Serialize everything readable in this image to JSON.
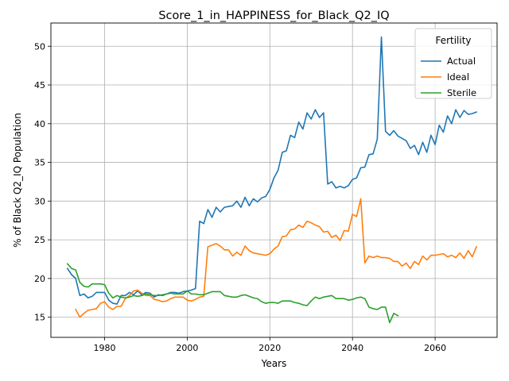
{
  "chart_data": {
    "type": "line",
    "title": "Score_1_in_HAPPINESS_for_Black_Q2_IQ",
    "xlabel": "Years",
    "ylabel": "% of Black Q2_IQ Population",
    "xlim": [
      1967,
      2075
    ],
    "ylim": [
      12.4,
      53.0
    ],
    "xticks": [
      1980,
      2000,
      2020,
      2040,
      2060
    ],
    "yticks": [
      15,
      20,
      25,
      30,
      35,
      40,
      45,
      50
    ],
    "grid": true,
    "legend": {
      "title": "Fertility",
      "position": "top-right"
    },
    "series": [
      {
        "name": "Actual",
        "color": "#1f77b4",
        "x": [
          1971,
          1972,
          1973,
          1974,
          1975,
          1976,
          1977,
          1978,
          1979,
          1980,
          1981,
          1982,
          1983,
          1984,
          1985,
          1986,
          1987,
          1988,
          1989,
          1990,
          1991,
          1992,
          1993,
          1994,
          1995,
          1996,
          1997,
          1998,
          1999,
          2000,
          2001,
          2002,
          2003,
          2004,
          2005,
          2006,
          2007,
          2008,
          2009,
          2010,
          2011,
          2012,
          2013,
          2014,
          2015,
          2016,
          2017,
          2018,
          2019,
          2020,
          2021,
          2022,
          2023,
          2024,
          2025,
          2026,
          2027,
          2028,
          2029,
          2030,
          2031,
          2032,
          2033,
          2034,
          2035,
          2036,
          2037,
          2038,
          2039,
          2040,
          2041,
          2042,
          2043,
          2044,
          2045,
          2046,
          2047,
          2048,
          2049,
          2050,
          2051,
          2052,
          2053,
          2054,
          2055,
          2056,
          2057,
          2058,
          2059,
          2060,
          2061,
          2062,
          2063,
          2064,
          2065,
          2066,
          2067,
          2068,
          2069,
          2070
        ],
        "values": [
          21.3,
          20.5,
          20.0,
          17.8,
          18.0,
          17.5,
          17.7,
          18.2,
          18.2,
          18.2,
          17.2,
          16.8,
          16.7,
          17.8,
          17.8,
          18.2,
          17.9,
          18.4,
          17.9,
          18.2,
          18.1,
          17.6,
          17.9,
          17.8,
          18.0,
          18.2,
          18.2,
          18.1,
          18.3,
          18.4,
          18.5,
          18.7,
          27.4,
          27.1,
          28.9,
          27.9,
          29.2,
          28.6,
          29.2,
          29.3,
          29.4,
          30.0,
          29.2,
          30.5,
          29.4,
          30.3,
          29.9,
          30.4,
          30.6,
          31.5,
          33.0,
          34.0,
          36.3,
          36.5,
          38.5,
          38.2,
          40.2,
          39.3,
          41.4,
          40.6,
          41.8,
          40.8,
          41.4,
          32.2,
          32.5,
          31.7,
          31.9,
          31.7,
          32.0,
          32.8,
          33.0,
          34.3,
          34.4,
          36.0,
          36.1,
          38.0,
          51.2,
          39.0,
          38.5,
          39.1,
          38.4,
          38.1,
          37.8,
          36.8,
          37.2,
          36.0,
          37.6,
          36.3,
          38.5,
          37.3,
          39.8,
          38.9,
          41.0,
          40.0,
          41.8,
          40.8,
          41.7,
          41.2,
          41.3,
          41.5
        ]
      },
      {
        "name": "Ideal",
        "color": "#ff7f0e",
        "x": [
          1973,
          1974,
          1975,
          1976,
          1977,
          1978,
          1979,
          1980,
          1981,
          1982,
          1983,
          1984,
          1985,
          1986,
          1987,
          1988,
          1989,
          1990,
          1991,
          1992,
          1993,
          1994,
          1995,
          1996,
          1997,
          1998,
          1999,
          2000,
          2001,
          2002,
          2003,
          2004,
          2005,
          2006,
          2007,
          2008,
          2009,
          2010,
          2011,
          2012,
          2013,
          2014,
          2015,
          2016,
          2017,
          2018,
          2019,
          2020,
          2021,
          2022,
          2023,
          2024,
          2025,
          2026,
          2027,
          2028,
          2029,
          2030,
          2031,
          2032,
          2033,
          2034,
          2035,
          2036,
          2037,
          2038,
          2039,
          2040,
          2041,
          2042,
          2043,
          2044,
          2045,
          2046,
          2047,
          2048,
          2049,
          2050,
          2051,
          2052,
          2053,
          2054,
          2055,
          2056,
          2057,
          2058,
          2059,
          2060,
          2061,
          2062,
          2063,
          2064,
          2065,
          2066,
          2067,
          2068,
          2069,
          2070
        ],
        "values": [
          16.0,
          15.0,
          15.5,
          15.9,
          16.0,
          16.1,
          16.8,
          17.0,
          16.3,
          16.0,
          16.4,
          16.4,
          17.4,
          17.8,
          18.4,
          18.5,
          18.1,
          17.8,
          17.8,
          17.3,
          17.2,
          17.0,
          17.1,
          17.4,
          17.6,
          17.6,
          17.6,
          17.2,
          17.1,
          17.3,
          17.6,
          17.7,
          24.1,
          24.3,
          24.5,
          24.2,
          23.7,
          23.7,
          22.9,
          23.4,
          23.0,
          24.2,
          23.6,
          23.3,
          23.2,
          23.1,
          23.0,
          23.2,
          23.8,
          24.2,
          25.4,
          25.5,
          26.3,
          26.4,
          26.9,
          26.6,
          27.4,
          27.2,
          26.9,
          26.7,
          26.0,
          26.1,
          25.3,
          25.6,
          24.9,
          26.2,
          26.1,
          28.3,
          28.0,
          30.3,
          22.0,
          22.9,
          22.7,
          22.9,
          22.7,
          22.7,
          22.6,
          22.2,
          22.2,
          21.6,
          22.0,
          21.3,
          22.2,
          21.8,
          22.9,
          22.4,
          23.0,
          23.0,
          23.1,
          23.2,
          22.8,
          23.0,
          22.7,
          23.3,
          22.6,
          23.6,
          22.8,
          24.1
        ]
      },
      {
        "name": "Sterile",
        "color": "#2ca02c",
        "x": [
          1971,
          1972,
          1973,
          1974,
          1975,
          1976,
          1977,
          1978,
          1979,
          1980,
          1981,
          1982,
          1983,
          1984,
          1985,
          1986,
          1987,
          1988,
          1989,
          1990,
          1991,
          1992,
          1993,
          1994,
          1995,
          1996,
          1997,
          1998,
          1999,
          2000,
          2001,
          2002,
          2003,
          2004,
          2005,
          2006,
          2007,
          2008,
          2009,
          2010,
          2011,
          2012,
          2013,
          2014,
          2015,
          2016,
          2017,
          2018,
          2019,
          2020,
          2021,
          2022,
          2023,
          2024,
          2025,
          2026,
          2027,
          2028,
          2029,
          2030,
          2031,
          2032,
          2033,
          2034,
          2035,
          2036,
          2037,
          2038,
          2039,
          2040,
          2041,
          2042,
          2043,
          2044,
          2045,
          2046,
          2047,
          2048,
          2049,
          2050,
          2051
        ],
        "values": [
          21.9,
          21.3,
          21.1,
          19.5,
          19.0,
          18.9,
          19.3,
          19.3,
          19.3,
          19.2,
          18.1,
          17.5,
          17.8,
          17.6,
          17.5,
          17.6,
          17.8,
          17.7,
          17.8,
          18.0,
          17.9,
          17.8,
          17.8,
          17.9,
          18.0,
          18.1,
          18.0,
          18.0,
          18.0,
          18.4,
          18.0,
          18.0,
          17.9,
          17.9,
          18.1,
          18.3,
          18.3,
          18.3,
          17.8,
          17.7,
          17.6,
          17.6,
          17.8,
          17.9,
          17.7,
          17.5,
          17.4,
          17.0,
          16.8,
          16.9,
          16.9,
          16.8,
          17.1,
          17.1,
          17.1,
          16.9,
          16.8,
          16.6,
          16.5,
          17.1,
          17.6,
          17.4,
          17.6,
          17.7,
          17.8,
          17.4,
          17.4,
          17.4,
          17.2,
          17.3,
          17.5,
          17.6,
          17.4,
          16.3,
          16.1,
          16.0,
          16.3,
          16.3,
          14.3,
          15.5,
          15.2
        ]
      }
    ]
  }
}
